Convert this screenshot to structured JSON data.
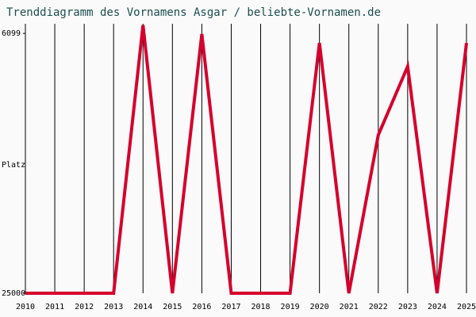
{
  "chart_data": {
    "type": "line",
    "title": "Trenddiagramm des Vornamens Asgar / beliebte-Vornamen.de",
    "y_label": "Platz",
    "x": [
      2010,
      2011,
      2012,
      2013,
      2014,
      2015,
      2016,
      2017,
      2018,
      2019,
      2020,
      2021,
      2022,
      2023,
      2024,
      2025
    ],
    "series": [
      {
        "name": "Asgar",
        "color": "#d5002c",
        "values": [
          25000,
          25000,
          25000,
          25000,
          5500,
          25000,
          6150,
          25000,
          25000,
          25000,
          6800,
          25000,
          13500,
          8500,
          25000,
          6800
        ]
      }
    ],
    "xlim": [
      2010,
      2025
    ],
    "xticks": [
      2010,
      2011,
      2012,
      2013,
      2014,
      2015,
      2016,
      2017,
      2018,
      2019,
      2020,
      2021,
      2022,
      2023,
      2024,
      2025
    ],
    "ylim": [
      25000,
      5400
    ],
    "yticks": [
      6099,
      25000
    ],
    "grid": true
  }
}
